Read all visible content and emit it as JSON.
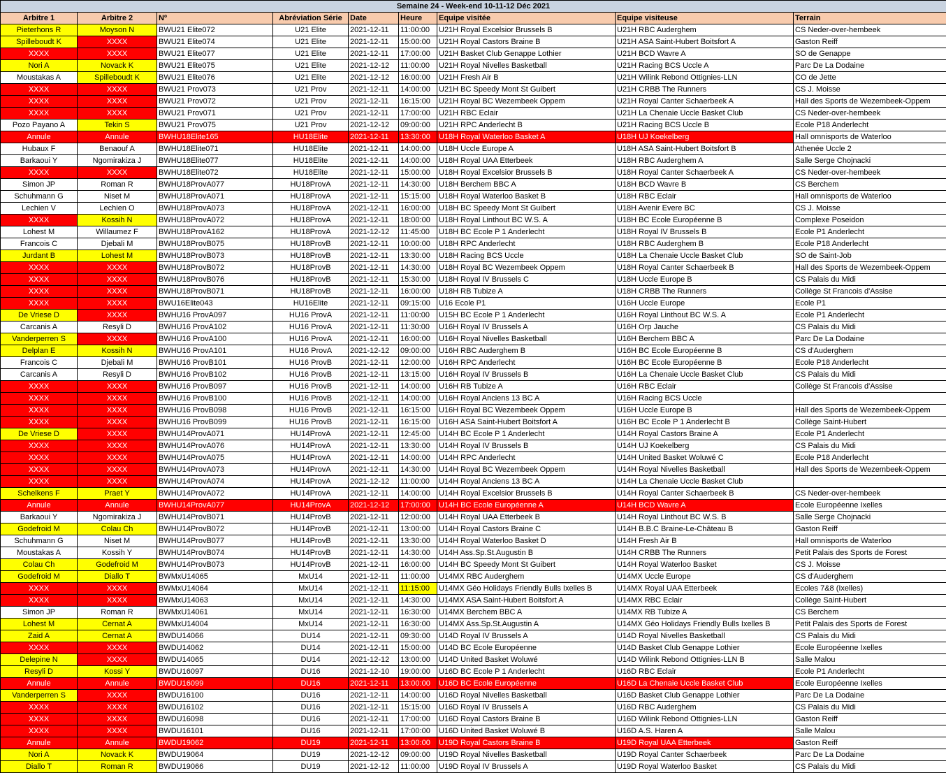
{
  "title": "Semaine 24 - Week-end 10-11-12 Déc 2021",
  "colors": {
    "yellow": "#ffff00",
    "red": "#ff0000",
    "header": "#f8cbad",
    "title_bar": "#c9d3e0"
  },
  "legend_codes": {
    "Y": "yellow",
    "R": "red",
    "W": "white",
    "A": "cancelled row (red)",
    "H": "time highlighted yellow"
  },
  "columns": [
    "Arbitre 1",
    "Arbitre 2",
    "Nº",
    "Abréviation Série",
    "Date",
    "Heure",
    "Equipe visitée",
    "Equipe visiteuse",
    "Terrain"
  ],
  "rows": [
    {
      "cells": [
        "Pieterhons R",
        "Moyson N",
        "BWU21 Elite072",
        "U21 Elite",
        "2021-12-11",
        "11:00:00",
        "U21H Royal Excelsior Brussels B",
        "U21H RBC Auderghem",
        "CS Neder-over-hembeek"
      ],
      "fill": "YY"
    },
    {
      "cells": [
        "Spilleboudt K",
        "XXXX",
        "BWU21 Elite074",
        "U21 Elite",
        "2021-12-11",
        "15:00:00",
        "U21H Royal Castors Braine B",
        "U21H ASA Saint-Hubert Boitsfort A",
        "Gaston Reiff"
      ],
      "fill": "YR"
    },
    {
      "cells": [
        "XXXX",
        "XXXX",
        "BWU21 Elite077",
        "U21 Elite",
        "2021-12-11",
        "17:00:00",
        "U21H Basket Club Genappe Lothier",
        "U21H BCD Wavre A",
        "SO de Genappe"
      ],
      "fill": "RR"
    },
    {
      "cells": [
        "Nori A",
        "Novack K",
        "BWU21 Elite075",
        "U21 Elite",
        "2021-12-12",
        "11:00:00",
        "U21H Royal Nivelles Basketball",
        "U21H Racing BCS Uccle A",
        "Parc De La Dodaine"
      ],
      "fill": "YY"
    },
    {
      "cells": [
        "Moustakas A",
        "Spilleboudt K",
        "BWU21 Elite076",
        "U21 Elite",
        "2021-12-12",
        "16:00:00",
        "U21H Fresh Air B",
        "U21H Wilink Rebond Ottignies-LLN",
        "CO de Jette"
      ],
      "fill": "WY"
    },
    {
      "cells": [
        "XXXX",
        "XXXX",
        "BWU21 Prov073",
        "U21 Prov",
        "2021-12-11",
        "14:00:00",
        "U21H BC Speedy Mont St Guibert",
        "U21H CRBB The Runners",
        "CS J. Moisse"
      ],
      "fill": "RR"
    },
    {
      "cells": [
        "XXXX",
        "XXXX",
        "BWU21 Prov072",
        "U21 Prov",
        "2021-12-11",
        "16:15:00",
        "U21H Royal BC Wezembeek Oppem",
        "U21H Royal Canter Schaerbeek A",
        "Hall des Sports de Wezembeek-Oppem"
      ],
      "fill": "RR"
    },
    {
      "cells": [
        "XXXX",
        "XXXX",
        "BWU21 Prov071",
        "U21 Prov",
        "2021-12-11",
        "17:00:00",
        "U21H RBC Eclair",
        "U21H La Chenaie Uccle Basket Club",
        "CS Neder-over-hembeek"
      ],
      "fill": "RR"
    },
    {
      "cells": [
        "Pozo Payano A",
        "Tekin S",
        "BWU21 Prov075",
        "U21 Prov",
        "2021-12-12",
        "09:00:00",
        "U21H RPC Anderlecht B",
        "U21H Racing BCS Uccle B",
        "Ecole P18 Anderlecht"
      ],
      "fill": "WY"
    },
    {
      "cells": [
        "Annule",
        "Annule",
        "BWHU18Elite165",
        "HU18Elite",
        "2021-12-11",
        "13:30:00",
        "U18H Royal Waterloo Basket A",
        "U18H UJ Koekelberg",
        "Hall omnisports de Waterloo"
      ],
      "fill": "A"
    },
    {
      "cells": [
        "Hubaux F",
        "Benaouf A",
        "BWHU18Elite071",
        "HU18Elite",
        "2021-12-11",
        "14:00:00",
        "U18H Uccle Europe A",
        "U18H ASA Saint-Hubert Boitsfort B",
        "Athenée Uccle 2"
      ],
      "fill": "WW"
    },
    {
      "cells": [
        "Barkaoui Y",
        "Ngomirakiza J",
        "BWHU18Elite077",
        "HU18Elite",
        "2021-12-11",
        "14:00:00",
        "U18H Royal UAA Etterbeek",
        "U18H RBC Auderghem A",
        "Salle Serge Chojnacki"
      ],
      "fill": "WW"
    },
    {
      "cells": [
        "XXXX",
        "XXXX",
        "BWHU18Elite072",
        "HU18Elite",
        "2021-12-11",
        "15:00:00",
        "U18H Royal Excelsior Brussels B",
        "U18H Royal Canter Schaerbeek A",
        "CS Neder-over-hembeek"
      ],
      "fill": "RR"
    },
    {
      "cells": [
        "Simon JP",
        "Roman R",
        "BWHU18ProvA077",
        "HU18ProvA",
        "2021-12-11",
        "14:30:00",
        "U18H Berchem BBC A",
        "U18H BCD Wavre B",
        "CS Berchem"
      ],
      "fill": "WW"
    },
    {
      "cells": [
        "Schuhmann G",
        "Niset M",
        "BWHU18ProvA071",
        "HU18ProvA",
        "2021-12-11",
        "15:15:00",
        "U18H Royal Waterloo Basket B",
        "U18H RBC Eclair",
        "Hall omnisports de Waterloo"
      ],
      "fill": "WW"
    },
    {
      "cells": [
        "Lechien V",
        "Lechien O",
        "BWHU18ProvA073",
        "HU18ProvA",
        "2021-12-11",
        "16:00:00",
        "U18H BC Speedy Mont St Guibert",
        "U18H Avenir Evere BC",
        "CS J. Moisse"
      ],
      "fill": "WW"
    },
    {
      "cells": [
        "XXXX",
        "Kossih N",
        "BWHU18ProvA072",
        "HU18ProvA",
        "2021-12-11",
        "18:00:00",
        "U18H Royal Linthout BC W.S. A",
        "U18H BC Ecole Européenne B",
        "Complexe Poseidon"
      ],
      "fill": "RY"
    },
    {
      "cells": [
        "Lohest M",
        "Willaumez F",
        "BWHU18ProvA162",
        "HU18ProvA",
        "2021-12-12",
        "11:45:00",
        "U18H BC Ecole P 1 Anderlecht",
        "U18H Royal IV Brussels B",
        "Ecole P1 Anderlecht"
      ],
      "fill": "WW"
    },
    {
      "cells": [
        "Francois C",
        "Djebali M",
        "BWHU18ProvB075",
        "HU18ProvB",
        "2021-12-11",
        "10:00:00",
        "U18H RPC Anderlecht",
        "U18H RBC Auderghem B",
        "Ecole P18 Anderlecht"
      ],
      "fill": "WW"
    },
    {
      "cells": [
        "Jurdant B",
        "Lohest M",
        "BWHU18ProvB073",
        "HU18ProvB",
        "2021-12-11",
        "13:30:00",
        "U18H Racing BCS Uccle",
        "U18H La Chenaie Uccle Basket Club",
        "SO de Saint-Job"
      ],
      "fill": "YY"
    },
    {
      "cells": [
        "XXXX",
        "XXXX",
        "BWHU18ProvB072",
        "HU18ProvB",
        "2021-12-11",
        "14:30:00",
        "U18H Royal BC Wezembeek Oppem",
        "U18H Royal Canter Schaerbeek B",
        "Hall des Sports de Wezembeek-Oppem"
      ],
      "fill": "RR"
    },
    {
      "cells": [
        "XXXX",
        "XXXX",
        "BWHU18ProvB076",
        "HU18ProvB",
        "2021-12-11",
        "15:30:00",
        "U18H Royal IV Brussels C",
        "U18H Uccle Europe B",
        "CS Palais du Midi"
      ],
      "fill": "RR"
    },
    {
      "cells": [
        "XXXX",
        "XXXX",
        "BWHU18ProvB071",
        "HU18ProvB",
        "2021-12-11",
        "16:00:00",
        "U18H RB Tubize A",
        "U18H CRBB The Runners",
        "Collège St Francois d'Assise"
      ],
      "fill": "RR"
    },
    {
      "cells": [
        "XXXX",
        "XXXX",
        "BWU16Elite043",
        "HU16Elite",
        "2021-12-11",
        "09:15:00",
        "U16 Ecole P1",
        "U16H Uccle Europe",
        "Ecole P1"
      ],
      "fill": "RR"
    },
    {
      "cells": [
        "De Vriese D",
        "XXXX",
        "BWHU16 ProvA097",
        "HU16 ProvA",
        "2021-12-11",
        "11:00:00",
        "U15H BC Ecole P 1 Anderlecht",
        "U16H Royal Linthout BC W.S. A",
        "Ecole P1 Anderlecht"
      ],
      "fill": "YR"
    },
    {
      "cells": [
        "Carcanis A",
        "Resyli D",
        "BWHU16 ProvA102",
        "HU16 ProvA",
        "2021-12-11",
        "11:30:00",
        "U16H Royal IV Brussels A",
        "U16H Orp Jauche",
        "CS Palais du Midi"
      ],
      "fill": "WW"
    },
    {
      "cells": [
        "Vanderperren S",
        "XXXX",
        "BWHU16 ProvA100",
        "HU16 ProvA",
        "2021-12-11",
        "16:00:00",
        "U16H Royal Nivelles Basketball",
        "U16H Berchem BBC A",
        "Parc De La Dodaine"
      ],
      "fill": "YR"
    },
    {
      "cells": [
        "Delplan E",
        "Kossih N",
        "BWHU16 ProvA101",
        "HU16 ProvA",
        "2021-12-12",
        "09:00:00",
        "U16H RBC Auderghem B",
        "U16H BC Ecole Européenne B",
        "CS d'Auderghem"
      ],
      "fill": "YY"
    },
    {
      "cells": [
        "Francois C",
        "Djebali M",
        "BWHU16 ProvB101",
        "HU16 ProvB",
        "2021-12-11",
        "12:00:00",
        "U16H RPC Anderlecht",
        "U16H BC Ecole Européenne B",
        "Ecole P18 Anderlecht"
      ],
      "fill": "WW"
    },
    {
      "cells": [
        "Carcanis A",
        "Resyli D",
        "BWHU16 ProvB102",
        "HU16 ProvB",
        "2021-12-11",
        "13:15:00",
        "U16H Royal IV Brussels B",
        "U16H La Chenaie Uccle Basket Club",
        "CS Palais du Midi"
      ],
      "fill": "WW"
    },
    {
      "cells": [
        "XXXX",
        "XXXX",
        "BWHU16 ProvB097",
        "HU16 ProvB",
        "2021-12-11",
        "14:00:00",
        "U16H RB Tubize A",
        "U16H RBC Eclair",
        "Collège St Francois d'Assise"
      ],
      "fill": "RR"
    },
    {
      "cells": [
        "XXXX",
        "XXXX",
        "BWHU16 ProvB100",
        "HU16 ProvB",
        "2021-12-11",
        "14:00:00",
        "U16H Royal Anciens 13 BC A",
        "U16H Racing BCS Uccle",
        ""
      ],
      "fill": "RR"
    },
    {
      "cells": [
        "XXXX",
        "XXXX",
        "BWHU16 ProvB098",
        "HU16 ProvB",
        "2021-12-11",
        "16:15:00",
        "U16H Royal BC Wezembeek Oppem",
        "U16H Uccle Europe B",
        "Hall des Sports de Wezembeek-Oppem"
      ],
      "fill": "RR"
    },
    {
      "cells": [
        "XXXX",
        "XXXX",
        "BWHU16 ProvB099",
        "HU16 ProvB",
        "2021-12-11",
        "16:15:00",
        "U16H ASA Saint-Hubert Boitsfort A",
        "U16H BC Ecole P 1 Anderlecht B",
        "Collège Saint-Hubert"
      ],
      "fill": "RR"
    },
    {
      "cells": [
        "De Vriese D",
        "XXXX",
        "BWHU14ProvA071",
        "HU14ProvA",
        "2021-12-11",
        "12:45:00",
        "U14H BC Ecole P 1 Anderlecht",
        "U14H Royal Castors Braine A",
        "Ecole P1 Anderlecht"
      ],
      "fill": "YR"
    },
    {
      "cells": [
        "XXXX",
        "XXXX",
        "BWHU14ProvA076",
        "HU14ProvA",
        "2021-12-11",
        "13:30:00",
        "U14H Royal IV Brussels B",
        "U14H UJ Koekelberg",
        "CS Palais du Midi"
      ],
      "fill": "RR"
    },
    {
      "cells": [
        "XXXX",
        "XXXX",
        "BWHU14ProvA075",
        "HU14ProvA",
        "2021-12-11",
        "14:00:00",
        "U14H RPC Anderlecht",
        "U14H United Basket Woluwé C",
        "Ecole P18 Anderlecht"
      ],
      "fill": "RR"
    },
    {
      "cells": [
        "XXXX",
        "XXXX",
        "BWHU14ProvA073",
        "HU14ProvA",
        "2021-12-11",
        "14:30:00",
        "U14H Royal BC Wezembeek Oppem",
        "U14H Royal Nivelles Basketball",
        "Hall des Sports de Wezembeek-Oppem"
      ],
      "fill": "RR"
    },
    {
      "cells": [
        "XXXX",
        "XXXX",
        "BWHU14ProvA074",
        "HU14ProvA",
        "2021-12-12",
        "11:00:00",
        "U14H Royal Anciens 13 BC A",
        "U14H La Chenaie Uccle Basket Club",
        ""
      ],
      "fill": "RR"
    },
    {
      "cells": [
        "Schelkens F",
        "Praet Y",
        "BWHU14ProvA072",
        "HU14ProvA",
        "2021-12-11",
        "14:00:00",
        "U14H Royal Excelsior Brussels B",
        "U14H Royal Canter Schaerbeek B",
        "CS Neder-over-hembeek"
      ],
      "fill": "YY"
    },
    {
      "cells": [
        "Annule",
        "Annule",
        "BWHU14ProvA077",
        "HU14ProvA",
        "2021-12-12",
        "17:00:00",
        "U14H BC Ecole Européenne A",
        "U14H BCD Wavre A",
        "Ecole Européenne Ixelles"
      ],
      "fill": "A"
    },
    {
      "cells": [
        "Barkaoui Y",
        "Ngomirakiza J",
        "BWHU14ProvB071",
        "HU14ProvB",
        "2021-12-11",
        "12:00:00",
        "U14H Royal UAA Etterbeek B",
        "U14H Royal Linthout BC W.S. B",
        "Salle Serge Chojnacki"
      ],
      "fill": "WW"
    },
    {
      "cells": [
        "Godefroid M",
        "Colau Ch",
        "BWHU14ProvB072",
        "HU14ProvB",
        "2021-12-11",
        "13:00:00",
        "U14H Royal Castors Braine C",
        "U14H B.B.C Braine-Le-Château B",
        "Gaston Reiff"
      ],
      "fill": "YY"
    },
    {
      "cells": [
        "Schuhmann G",
        "Niset M",
        "BWHU14ProvB077",
        "HU14ProvB",
        "2021-12-11",
        "13:30:00",
        "U14H Royal Waterloo Basket D",
        "U14H Fresh Air B",
        "Hall omnisports de Waterloo"
      ],
      "fill": "WW"
    },
    {
      "cells": [
        "Moustakas A",
        "Kossih Y",
        "BWHU14ProvB074",
        "HU14ProvB",
        "2021-12-11",
        "14:30:00",
        "U14H Ass.Sp.St.Augustin B",
        "U14H CRBB The Runners",
        "Petit Palais des Sports de Forest"
      ],
      "fill": "WW"
    },
    {
      "cells": [
        "Colau Ch",
        "Godefroid M",
        "BWHU14ProvB073",
        "HU14ProvB",
        "2021-12-11",
        "16:00:00",
        "U14H BC Speedy Mont St Guibert",
        "U14H Royal Waterloo Basket",
        "CS J. Moisse"
      ],
      "fill": "YY"
    },
    {
      "cells": [
        "Godefroid M",
        "Diallo T",
        "BWMxU14065",
        "MxU14",
        "2021-12-11",
        "11:00:00",
        "U14MX RBC Auderghem",
        "U14MX Uccle Europe",
        "CS d'Auderghem"
      ],
      "fill": "YY"
    },
    {
      "cells": [
        "XXXX",
        "XXXX",
        "BWMxU14064",
        "MxU14",
        "2021-12-11",
        "11:15:00",
        "U14MX Géo Holidays Friendly Bulls Ixelles B",
        "U14MX Royal UAA Etterbeek",
        "Ecoles 7&8 (Ixelles)"
      ],
      "fill": "RRH"
    },
    {
      "cells": [
        "XXXX",
        "XXXX",
        "BWMxU14063",
        "MxU14",
        "2021-12-11",
        "14:30:00",
        "U14MX ASA Saint-Hubert Boitsfort A",
        "U14MX RBC Eclair",
        "Collège Saint-Hubert"
      ],
      "fill": "RR"
    },
    {
      "cells": [
        "Simon JP",
        "Roman R",
        "BWMxU14061",
        "MxU14",
        "2021-12-11",
        "16:30:00",
        "U14MX Berchem BBC A",
        "U14MX RB Tubize A",
        "CS Berchem"
      ],
      "fill": "WW"
    },
    {
      "cells": [
        "Lohest M",
        "Cernat A",
        "BWMxU14004",
        "MxU14",
        "2021-12-11",
        "16:30:00",
        "U14MX Ass.Sp.St.Augustin A",
        "U14MX Géo Holidays Friendly Bulls Ixelles B",
        "Petit Palais des Sports de Forest"
      ],
      "fill": "YY"
    },
    {
      "cells": [
        "Zaid A",
        "Cernat A",
        "BWDU14066",
        "DU14",
        "2021-12-11",
        "09:30:00",
        "U14D Royal IV Brussels A",
        "U14D Royal Nivelles Basketball",
        "CS Palais du Midi"
      ],
      "fill": "YY"
    },
    {
      "cells": [
        "XXXX",
        "XXXX",
        "BWDU14062",
        "DU14",
        "2021-12-11",
        "15:00:00",
        "U14D BC Ecole Européenne",
        "U14D Basket Club Genappe Lothier",
        "Ecole Européenne Ixelles"
      ],
      "fill": "RR"
    },
    {
      "cells": [
        "Delepine N",
        "XXXX",
        "BWDU14065",
        "DU14",
        "2021-12-12",
        "13:00:00",
        "U14D United Basket Woluwé",
        "U14D Wilink Rebond Ottignies-LLN B",
        "Salle Malou"
      ],
      "fill": "YR"
    },
    {
      "cells": [
        "Resyli D",
        "Kossi Y",
        "BWDU16097",
        "DU16",
        "2021-12-10",
        "19:00:00",
        "U16D BC Ecole P 1 Anderlecht",
        "U16D RBC Eclair",
        "Ecole P1 Anderlecht"
      ],
      "fill": "YY"
    },
    {
      "cells": [
        "Annule",
        "Annule",
        "BWDU16099",
        "DU16",
        "2021-12-11",
        "13:00:00",
        "U16D BC Ecole Européenne",
        "U16D La Chenaie Uccle Basket Club",
        "Ecole Européenne Ixelles"
      ],
      "fill": "A"
    },
    {
      "cells": [
        "Vanderperren S",
        "XXXX",
        "BWDU16100",
        "DU16",
        "2021-12-11",
        "14:00:00",
        "U16D Royal Nivelles Basketball",
        "U16D Basket Club Genappe Lothier",
        "Parc De La Dodaine"
      ],
      "fill": "YR"
    },
    {
      "cells": [
        "XXXX",
        "XXXX",
        "BWDU16102",
        "DU16",
        "2021-12-11",
        "15:15:00",
        "U16D Royal IV Brussels A",
        "U16D RBC Auderghem",
        "CS Palais du Midi"
      ],
      "fill": "RR"
    },
    {
      "cells": [
        "XXXX",
        "XXXX",
        "BWDU16098",
        "DU16",
        "2021-12-11",
        "17:00:00",
        "U16D Royal Castors Braine B",
        "U16D Wilink Rebond Ottignies-LLN",
        "Gaston Reiff"
      ],
      "fill": "RR"
    },
    {
      "cells": [
        "XXXX",
        "XXXX",
        "BWDU16101",
        "DU16",
        "2021-12-11",
        "17:00:00",
        "U16D United Basket Woluwé B",
        "U16D A.S. Haren A",
        "Salle Malou"
      ],
      "fill": "RR"
    },
    {
      "cells": [
        "Annule",
        "Annule",
        "BWDU19062",
        "DU19",
        "2021-12-11",
        "13:00:00",
        "U19D Royal Castors Braine B",
        "U19D Royal UAA Etterbeek",
        "Gaston Reiff"
      ],
      "fill": "A"
    },
    {
      "cells": [
        "Nori A",
        "Novack K",
        "BWDU19064",
        "DU19",
        "2021-12-12",
        "09:00:00",
        "U19D Royal Nivelles Basketball",
        "U19D Royal Canter Schaerbeek",
        "Parc De La Dodaine"
      ],
      "fill": "YY"
    },
    {
      "cells": [
        "Diallo T",
        "Roman R",
        "BWDU19066",
        "DU19",
        "2021-12-12",
        "11:00:00",
        "U19D Royal IV Brussels A",
        "U19D Royal Waterloo Basket",
        "CS Palais du Midi"
      ],
      "fill": "YY"
    }
  ]
}
